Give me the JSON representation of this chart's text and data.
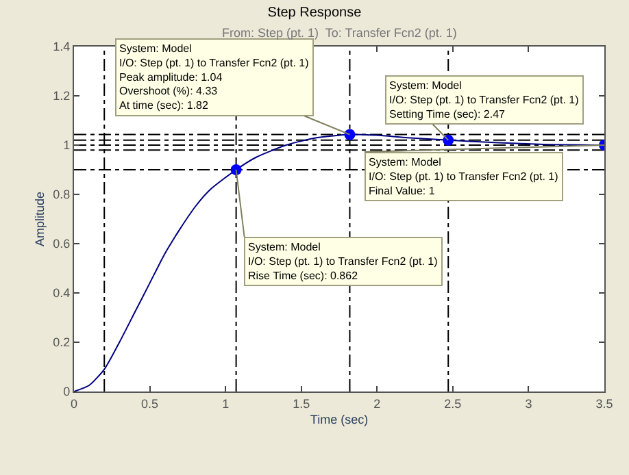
{
  "chart_data": {
    "type": "line",
    "title": "Step Response",
    "subtitle": "From: Step (pt. 1)  To: Transfer Fcn2 (pt. 1)",
    "xlabel": "Time (sec)",
    "ylabel": "Amplitude",
    "xlim": [
      0,
      3.5
    ],
    "xticks": [
      0,
      0.5,
      1,
      1.5,
      2,
      2.5,
      3,
      3.5
    ],
    "ylim": [
      0,
      1.4
    ],
    "yticks": [
      0,
      0.2,
      0.4,
      0.6,
      0.8,
      1,
      1.2,
      1.4
    ],
    "grid": false,
    "series": [
      {
        "type": "line",
        "color": "#00007f",
        "marker": "none",
        "x": [
          0,
          0.1,
          0.2,
          0.3,
          0.4,
          0.5,
          0.6,
          0.7,
          0.8,
          0.9,
          1.07,
          1.2,
          1.4,
          1.6,
          1.82,
          2.0,
          2.2,
          2.47,
          2.8,
          3.1,
          3.5
        ],
        "values": [
          0,
          0.025,
          0.09,
          0.2,
          0.32,
          0.44,
          0.56,
          0.66,
          0.75,
          0.82,
          0.9,
          0.95,
          1.0,
          1.03,
          1.043,
          1.04,
          1.03,
          1.02,
          1.01,
          1.003,
          1.0
        ]
      },
      {
        "type": "scatter",
        "color": "#0000ff",
        "marker": "circle",
        "x": [
          1.07,
          1.82,
          2.47,
          3.5
        ],
        "values": [
          0.9,
          1.043,
          1.02,
          1.0
        ]
      }
    ],
    "ref_lines": [
      {
        "axis": "y",
        "value": 0.9,
        "color": "#000000",
        "line_style": "dashdot"
      },
      {
        "axis": "y",
        "value": 0.98,
        "color": "#000000",
        "line_style": "dashdot"
      },
      {
        "axis": "y",
        "value": 1.0,
        "color": "#000000",
        "line_style": "dashdot"
      },
      {
        "axis": "y",
        "value": 1.02,
        "color": "#000000",
        "line_style": "dashdot"
      },
      {
        "axis": "y",
        "value": 1.043,
        "color": "#000000",
        "line_style": "dashdot"
      },
      {
        "axis": "x",
        "value": 0.2,
        "color": "#000000",
        "line_style": "dashdot"
      },
      {
        "axis": "x",
        "value": 1.07,
        "color": "#000000",
        "line_style": "dashdot"
      },
      {
        "axis": "x",
        "value": 1.82,
        "color": "#000000",
        "line_style": "dashdot"
      },
      {
        "axis": "x",
        "value": 2.47,
        "color": "#000000",
        "line_style": "dashdot"
      }
    ],
    "annotations": [
      {
        "text": "System: Model\nI/O: Step (pt. 1) to Transfer Fcn2 (pt. 1)\nPeak amplitude: 1.04\nOvershoot (%): 4.33\nAt time (sec): 1.82",
        "x": 1.82,
        "y": 1.043
      },
      {
        "text": "System: Model\nI/O: Step (pt. 1) to Transfer Fcn2 (pt. 1)\nRise Time (sec): 0.862",
        "x": 1.07,
        "y": 0.9
      },
      {
        "text": "System: Model\nI/O: Step (pt. 1) to Transfer Fcn2 (pt. 1)\nSetting Time (sec): 2.47",
        "x": 2.47,
        "y": 1.02
      },
      {
        "text": "System: Model\nI/O: Step (pt. 1) to Transfer Fcn2 (pt. 1)\nFinal Value: 1",
        "x": 3.5,
        "y": 1.0
      }
    ]
  }
}
